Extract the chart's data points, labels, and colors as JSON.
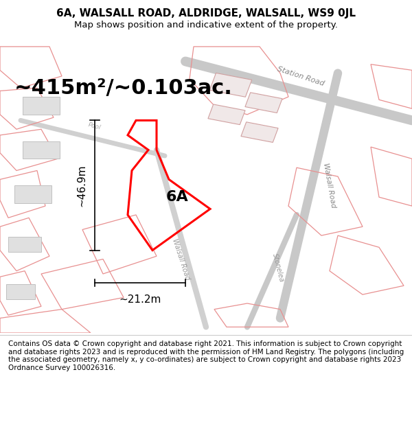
{
  "title": "6A, WALSALL ROAD, ALDRIDGE, WALSALL, WS9 0JL",
  "subtitle": "Map shows position and indicative extent of the property.",
  "area_text": "~415m²/~0.103ac.",
  "dim_height": "~46.9m",
  "dim_width": "~21.2m",
  "label": "6A",
  "footer": "Contains OS data © Crown copyright and database right 2021. This information is subject to Crown copyright and database rights 2023 and is reproduced with the permission of HM Land Registry. The polygons (including the associated geometry, namely x, y co-ordinates) are subject to Crown copyright and database rights 2023 Ordnance Survey 100026316.",
  "map_bg": "#ffffff",
  "plot_color": "#ff0000",
  "title_color": "#000000",
  "footer_color": "#000000",
  "title_fontsize": 11,
  "subtitle_fontsize": 9.5,
  "area_fontsize": 22,
  "dim_fontsize": 11,
  "label_fontsize": 16,
  "footer_fontsize": 7.5
}
